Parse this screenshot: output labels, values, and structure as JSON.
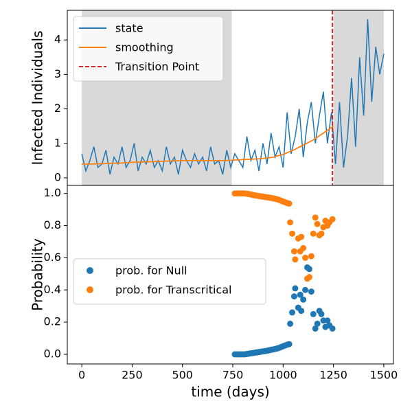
{
  "chart_data": [
    {
      "type": "line",
      "ylabel": "Infected Individuals",
      "xlim": [
        -72,
        1548
      ],
      "ylim": [
        -0.22,
        4.86
      ],
      "yticks": [
        0,
        1,
        2,
        3,
        4
      ],
      "legend": "upper left",
      "shaded_regions": [
        [
          0,
          745
        ],
        [
          1250,
          1500
        ]
      ],
      "shade_color": "#d9d9d9",
      "vlines": [
        {
          "name": "Transition Point",
          "x": 1245,
          "color": "#d62728"
        }
      ],
      "series": [
        {
          "name": "state",
          "color": "#1f77b4",
          "x": [
            0,
            20,
            40,
            60,
            80,
            100,
            120,
            140,
            160,
            180,
            200,
            220,
            240,
            260,
            280,
            300,
            320,
            340,
            360,
            380,
            400,
            420,
            440,
            460,
            480,
            500,
            520,
            540,
            560,
            580,
            600,
            620,
            640,
            660,
            680,
            700,
            720,
            740,
            760,
            780,
            800,
            820,
            840,
            860,
            880,
            900,
            920,
            940,
            960,
            980,
            1000,
            1020,
            1040,
            1060,
            1080,
            1100,
            1120,
            1140,
            1160,
            1180,
            1200,
            1220,
            1240,
            1260,
            1280,
            1300,
            1320,
            1340,
            1360,
            1380,
            1400,
            1420,
            1440,
            1460,
            1480,
            1500
          ],
          "values": [
            0.7,
            0.2,
            0.5,
            0.9,
            0.3,
            0.4,
            0.8,
            0.1,
            0.6,
            0.4,
            0.9,
            0.3,
            0.5,
            1.0,
            0.2,
            0.6,
            0.4,
            0.8,
            0.3,
            0.5,
            0.2,
            0.9,
            0.4,
            0.6,
            0.1,
            0.8,
            0.5,
            0.3,
            0.7,
            0.4,
            0.6,
            0.2,
            0.9,
            0.4,
            0.5,
            0.1,
            0.8,
            0.3,
            0.7,
            0.5,
            0.3,
            1.2,
            0.5,
            0.8,
            0.2,
            1.0,
            0.4,
            1.3,
            0.6,
            0.9,
            0.3,
            1.9,
            0.7,
            1.2,
            2.0,
            0.6,
            1.6,
            2.2,
            1.0,
            1.8,
            2.5,
            1.0,
            1.9,
            0.4,
            2.2,
            0.3,
            1.2,
            2.9,
            0.9,
            3.5,
            1.8,
            4.6,
            2.2,
            3.8,
            3.0,
            3.6
          ]
        },
        {
          "name": "smoothing",
          "color": "#ff7f0e",
          "x": [
            0,
            50,
            100,
            150,
            200,
            250,
            300,
            350,
            400,
            450,
            500,
            550,
            600,
            650,
            700,
            750,
            800,
            850,
            900,
            950,
            1000,
            1050,
            1100,
            1150,
            1200,
            1250
          ],
          "values": [
            0.4,
            0.4,
            0.41,
            0.42,
            0.43,
            0.45,
            0.46,
            0.47,
            0.48,
            0.49,
            0.5,
            0.5,
            0.5,
            0.5,
            0.5,
            0.51,
            0.53,
            0.54,
            0.56,
            0.6,
            0.68,
            0.8,
            0.95,
            1.1,
            1.3,
            1.5
          ]
        }
      ]
    },
    {
      "type": "scatter",
      "xlabel": "time (days)",
      "ylabel": "Probability",
      "xlim": [
        -72,
        1548
      ],
      "xticks": [
        0,
        250,
        500,
        750,
        1000,
        1250,
        1500
      ],
      "ylim": [
        -0.06,
        1.05
      ],
      "yticks": [
        {
          "value": 0,
          "label": "0.0"
        },
        0.2,
        0.4,
        0.6,
        0.8,
        {
          "value": 1,
          "label": "1.0"
        }
      ],
      "legend": "center left",
      "x": [
        760,
        770,
        780,
        790,
        800,
        810,
        820,
        830,
        840,
        850,
        860,
        870,
        880,
        890,
        900,
        910,
        920,
        930,
        940,
        950,
        960,
        970,
        980,
        990,
        1000,
        1010,
        1020,
        1030,
        1035,
        1045,
        1055,
        1060,
        1075,
        1085,
        1090,
        1100,
        1110,
        1120,
        1130,
        1140,
        1150,
        1160,
        1170,
        1180,
        1190,
        1200,
        1210,
        1220,
        1230,
        1245
      ],
      "series": [
        {
          "name": "prob. for Null",
          "color": "#1f77b4",
          "values": [
            0,
            0,
            0,
            0,
            0,
            0,
            0.002,
            0.004,
            0.006,
            0.008,
            0.01,
            0.012,
            0.014,
            0.016,
            0.018,
            0.02,
            0.022,
            0.025,
            0.028,
            0.03,
            0.033,
            0.036,
            0.04,
            0.045,
            0.05,
            0.055,
            0.06,
            0.063,
            0.19,
            0.26,
            0.36,
            0.41,
            0.29,
            0.37,
            0.27,
            0.34,
            0.4,
            0.54,
            0.53,
            0.39,
            0.25,
            0.16,
            0.19,
            0.27,
            0.25,
            0.21,
            0.17,
            0.21,
            0.18,
            0.16
          ]
        },
        {
          "name": "prob. for Transcritical",
          "color": "#ff7f0e",
          "values": [
            1,
            1,
            1,
            1,
            1,
            1,
            0.998,
            0.996,
            0.994,
            0.99,
            0.988,
            0.986,
            0.984,
            0.982,
            0.98,
            0.978,
            0.976,
            0.975,
            0.972,
            0.97,
            0.967,
            0.964,
            0.96,
            0.955,
            0.95,
            0.945,
            0.94,
            0.937,
            0.82,
            0.75,
            0.64,
            0.59,
            0.72,
            0.64,
            0.73,
            0.66,
            0.6,
            0.47,
            0.48,
            0.61,
            0.75,
            0.85,
            0.81,
            0.74,
            0.75,
            0.79,
            0.83,
            0.8,
            0.82,
            0.84
          ]
        }
      ]
    }
  ]
}
